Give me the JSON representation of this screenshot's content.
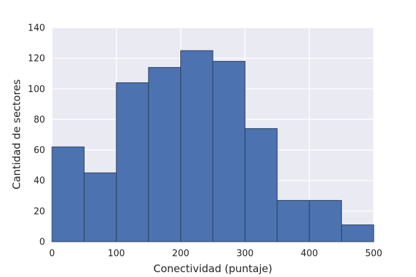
{
  "chart_data": {
    "type": "bar",
    "title": "",
    "xlabel": "Conectividad (puntaje)",
    "ylabel": "Cantidad de sectores",
    "xlim": [
      0,
      500
    ],
    "ylim": [
      0,
      140
    ],
    "xticks": [
      0,
      100,
      200,
      300,
      400,
      500
    ],
    "yticks": [
      0,
      20,
      40,
      60,
      80,
      100,
      120,
      140
    ],
    "grid": true,
    "colors": {
      "bar": "#4c72b0",
      "bar_edge": "#2a3f5f",
      "background": "#eaeaf2",
      "grid": "#ffffff"
    },
    "bins": [
      {
        "x0": 0,
        "x1": 50,
        "count": 62
      },
      {
        "x0": 50,
        "x1": 100,
        "count": 45
      },
      {
        "x0": 100,
        "x1": 150,
        "count": 104
      },
      {
        "x0": 150,
        "x1": 200,
        "count": 114
      },
      {
        "x0": 200,
        "x1": 250,
        "count": 125
      },
      {
        "x0": 250,
        "x1": 300,
        "count": 118
      },
      {
        "x0": 300,
        "x1": 350,
        "count": 74
      },
      {
        "x0": 350,
        "x1": 400,
        "count": 27
      },
      {
        "x0": 400,
        "x1": 450,
        "count": 27
      },
      {
        "x0": 450,
        "x1": 500,
        "count": 11
      }
    ]
  }
}
